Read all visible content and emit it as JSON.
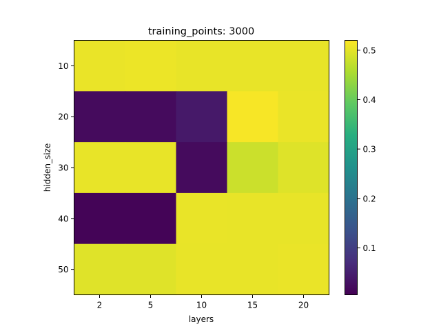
{
  "chart_data": {
    "type": "heatmap",
    "title": "training_points: 3000",
    "xlabel": "layers",
    "ylabel": "hidden_size",
    "x_categories": [
      "2",
      "5",
      "10",
      "15",
      "20"
    ],
    "y_categories": [
      "10",
      "20",
      "30",
      "40",
      "50"
    ],
    "values": [
      [
        0.505,
        0.506,
        0.503,
        0.503,
        0.503
      ],
      [
        0.02,
        0.02,
        0.04,
        0.515,
        0.505
      ],
      [
        0.503,
        0.503,
        0.02,
        0.48,
        0.495
      ],
      [
        0.01,
        0.01,
        0.504,
        0.503,
        0.503
      ],
      [
        0.496,
        0.496,
        0.503,
        0.503,
        0.505
      ]
    ],
    "colormap": "viridis",
    "vmin": 0.005,
    "vmax": 0.52,
    "colorbar_ticks": [
      "0.1",
      "0.2",
      "0.3",
      "0.4",
      "0.5"
    ],
    "colorbar_tick_values": [
      0.1,
      0.2,
      0.3,
      0.4,
      0.5
    ],
    "grid": false,
    "colorbar_position": "right"
  }
}
